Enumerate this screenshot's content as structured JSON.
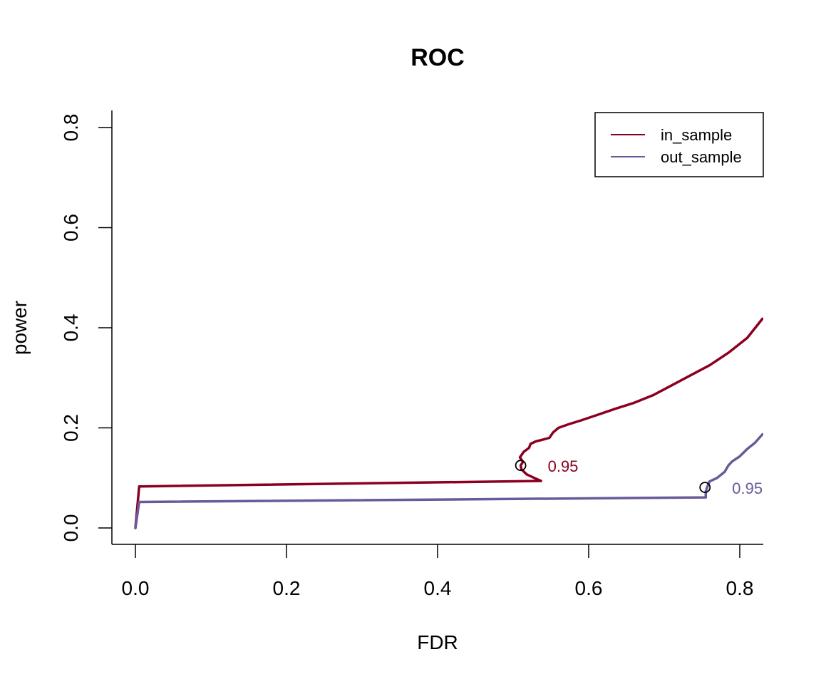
{
  "chart_data": {
    "type": "line",
    "title": "ROC",
    "xlabel": "FDR",
    "ylabel": "power",
    "xlim": [
      0.0,
      0.83
    ],
    "ylim": [
      0.0,
      0.8
    ],
    "x_ticks": [
      "0.0",
      "0.2",
      "0.4",
      "0.6",
      "0.8"
    ],
    "y_ticks": [
      "0.0",
      "0.2",
      "0.4",
      "0.6",
      "0.8"
    ],
    "legend": {
      "position": "top-right"
    },
    "series": [
      {
        "name": "in_sample",
        "color": "#8B0020",
        "points": [
          [
            0.0,
            0.0
          ],
          [
            0.005,
            0.083
          ],
          [
            0.537,
            0.094
          ],
          [
            0.528,
            0.1
          ],
          [
            0.518,
            0.107
          ],
          [
            0.511,
            0.117
          ],
          [
            0.51,
            0.125
          ],
          [
            0.513,
            0.132
          ],
          [
            0.509,
            0.141
          ],
          [
            0.514,
            0.152
          ],
          [
            0.521,
            0.16
          ],
          [
            0.523,
            0.168
          ],
          [
            0.53,
            0.173
          ],
          [
            0.543,
            0.178
          ],
          [
            0.548,
            0.18
          ],
          [
            0.553,
            0.191
          ],
          [
            0.56,
            0.2
          ],
          [
            0.575,
            0.208
          ],
          [
            0.59,
            0.215
          ],
          [
            0.61,
            0.225
          ],
          [
            0.635,
            0.238
          ],
          [
            0.66,
            0.25
          ],
          [
            0.685,
            0.265
          ],
          [
            0.71,
            0.285
          ],
          [
            0.735,
            0.305
          ],
          [
            0.76,
            0.325
          ],
          [
            0.785,
            0.35
          ],
          [
            0.81,
            0.38
          ],
          [
            0.83,
            0.418
          ]
        ],
        "marker": {
          "x": 0.51,
          "y": 0.125,
          "label": "0.95"
        }
      },
      {
        "name": "out_sample",
        "color": "#6A5A9A",
        "points": [
          [
            0.0,
            0.0
          ],
          [
            0.005,
            0.052
          ],
          [
            0.755,
            0.061
          ],
          [
            0.755,
            0.073
          ],
          [
            0.757,
            0.082
          ],
          [
            0.76,
            0.093
          ],
          [
            0.77,
            0.1
          ],
          [
            0.78,
            0.112
          ],
          [
            0.785,
            0.125
          ],
          [
            0.79,
            0.133
          ],
          [
            0.8,
            0.143
          ],
          [
            0.81,
            0.158
          ],
          [
            0.82,
            0.17
          ],
          [
            0.83,
            0.187
          ]
        ],
        "marker": {
          "x": 0.754,
          "y": 0.081,
          "label": "0.95"
        }
      }
    ]
  }
}
